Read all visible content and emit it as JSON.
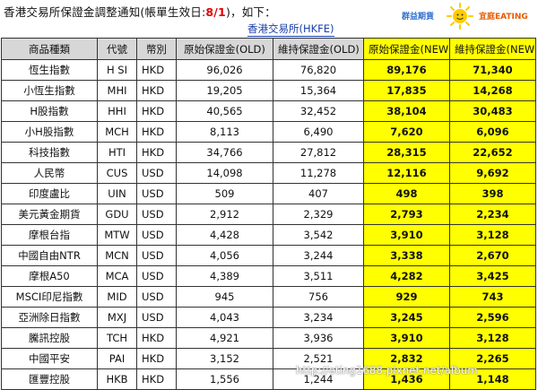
{
  "header": {
    "title_before": "香港交易所保證金調整通知(帳單生效日:",
    "title_date": "8/1",
    "title_after": ")，如下：",
    "subtitle": "香港交易所(HKFE)"
  },
  "logo": {
    "left_text": "群益期貨",
    "right_text": "宜庭EATING",
    "icon": "sun-icon",
    "colors": {
      "left": "#2e6fcf",
      "right": "#e65c00",
      "sun": "#ffcc00"
    }
  },
  "table": {
    "columns": [
      "商品種類",
      "代號",
      "幣別",
      "原始保證金(OLD)",
      "維持保證金(OLD)",
      "原始保證金(NEW)",
      "維持保證金(NEW)"
    ],
    "rows": [
      [
        "恆生指數",
        "H SI",
        "HKD",
        "96,026",
        "76,820",
        "89,176",
        "71,340"
      ],
      [
        "小恆生指數",
        "MHI",
        "HKD",
        "19,205",
        "15,364",
        "17,835",
        "14,268"
      ],
      [
        "H股指數",
        "HHI",
        "HKD",
        "40,565",
        "32,452",
        "38,104",
        "30,483"
      ],
      [
        "小H股指數",
        "MCH",
        "HKD",
        "8,113",
        "6,490",
        "7,620",
        "6,096"
      ],
      [
        "科技指數",
        "HTI",
        "HKD",
        "34,766",
        "27,812",
        "28,315",
        "22,652"
      ],
      [
        "人民幣",
        "CUS",
        "USD",
        "14,098",
        "11,278",
        "12,116",
        "9,692"
      ],
      [
        "印度盧比",
        "UIN",
        "USD",
        "509",
        "407",
        "498",
        "398"
      ],
      [
        "美元黃金期貨",
        "GDU",
        "USD",
        "2,912",
        "2,329",
        "2,793",
        "2,234"
      ],
      [
        "摩根台指",
        "MTW",
        "USD",
        "4,428",
        "3,542",
        "3,910",
        "3,128"
      ],
      [
        "中國自由NTR",
        "MCN",
        "USD",
        "4,056",
        "3,244",
        "3,338",
        "2,670"
      ],
      [
        "摩根A50",
        "MCA",
        "USD",
        "4,389",
        "3,511",
        "4,282",
        "3,425"
      ],
      [
        "MSCI印尼指數",
        "MID",
        "USD",
        "945",
        "756",
        "929",
        "743"
      ],
      [
        "亞洲除日指數",
        "MXJ",
        "USD",
        "4,043",
        "3,234",
        "3,245",
        "2,596"
      ],
      [
        "騰訊控股",
        "TCH",
        "HKD",
        "4,921",
        "3,936",
        "3,910",
        "3,128"
      ],
      [
        "中國平安",
        "PAI",
        "HKD",
        "3,152",
        "2,521",
        "2,832",
        "2,265"
      ],
      [
        "匯豐控股",
        "HKB",
        "HKD",
        "1,556",
        "1,244",
        "1,436",
        "1,148"
      ]
    ]
  },
  "colors": {
    "header_bg": "#d7d7d7",
    "new_highlight": "#ffff00",
    "date_red": "#e00000",
    "subtitle_blue": "#1a3fa8"
  },
  "watermark": "http://eting1688.pixnet.net/album"
}
